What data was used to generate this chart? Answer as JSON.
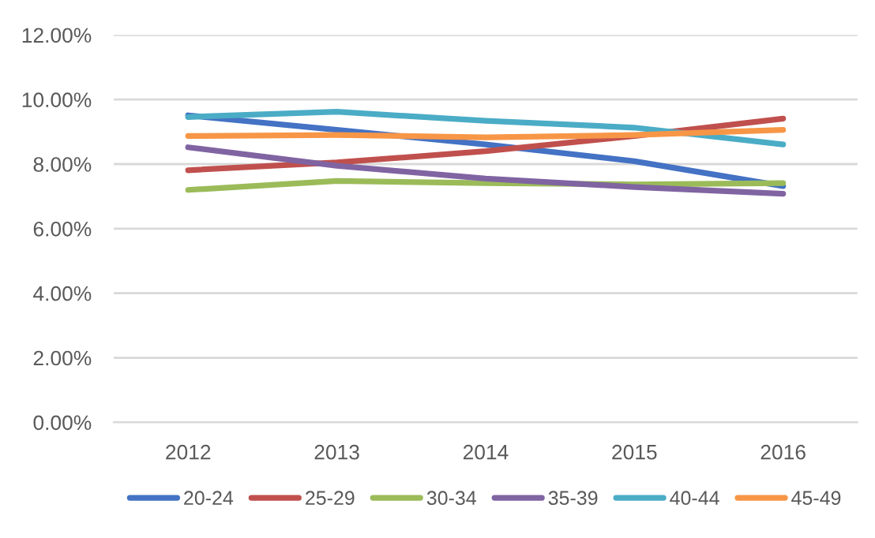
{
  "chart_data": {
    "type": "line",
    "categories": [
      "2012",
      "2013",
      "2014",
      "2015",
      "2016"
    ],
    "series": [
      {
        "name": "20-24",
        "color": "#4472c4",
        "values": [
          9.51,
          9.06,
          8.61,
          8.09,
          7.32
        ]
      },
      {
        "name": "25-29",
        "color": "#c0504d",
        "values": [
          7.81,
          8.05,
          8.4,
          8.87,
          9.41
        ]
      },
      {
        "name": "30-34",
        "color": "#9bbb59",
        "values": [
          7.2,
          7.48,
          7.41,
          7.37,
          7.41
        ]
      },
      {
        "name": "35-39",
        "color": "#8064a2",
        "values": [
          8.52,
          7.95,
          7.55,
          7.29,
          7.08
        ]
      },
      {
        "name": "40-44",
        "color": "#4bacc6",
        "values": [
          9.46,
          9.62,
          9.34,
          9.13,
          8.61
        ]
      },
      {
        "name": "45-49",
        "color": "#f79646",
        "values": [
          8.87,
          8.9,
          8.83,
          8.9,
          9.06
        ]
      }
    ],
    "ylim": [
      0,
      12
    ],
    "yticks": [
      {
        "value": 0,
        "label": "0.00%"
      },
      {
        "value": 2,
        "label": "2.00%"
      },
      {
        "value": 4,
        "label": "4.00%"
      },
      {
        "value": 6,
        "label": "6.00%"
      },
      {
        "value": 8,
        "label": "8.00%"
      },
      {
        "value": 10,
        "label": "10.00%"
      },
      {
        "value": 12,
        "label": "12.00%"
      }
    ],
    "grid": "y",
    "legend": "bottom",
    "marker": "none",
    "line_style": "solid"
  }
}
